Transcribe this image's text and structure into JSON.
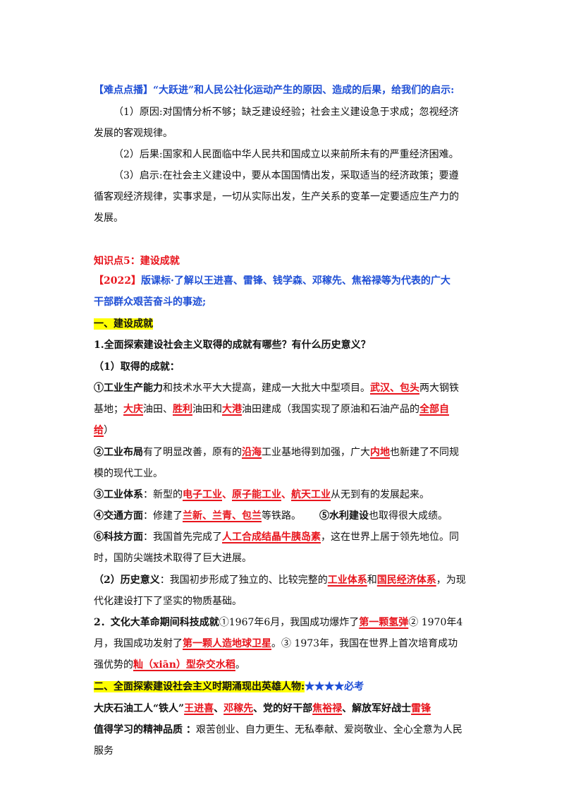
{
  "difficulty": {
    "title": "【难点点播】“大跃进”和人民公社化运动产生的原因、造成的后果，给我们的启示:",
    "cause_1": "（1）原因:对国情分析不够；缺乏建设经验；社会主义建设急于求成；忽视经济",
    "cause_2": "发展的客观规律。",
    "result": "（2）后果:国家和人民面临中华人民共和国成立以来前所未有的严重经济困难。",
    "lesson_1": "（3）启示:在社会主义建设中，要从本国国情出发，采取适当的经济政策；要遵",
    "lesson_2": "循客观经济规律，实事求是，一切从实际出发，生产关系的变革一定要适应生产力的",
    "lesson_3": "发展。"
  },
  "knowledge": {
    "heading": "知识点5：建设成就",
    "standard_tag": "【2022】",
    "standard_1": "版课标·了解以王进喜、雷锋、钱学森、邓稼先、焦裕禄等为代表的广大",
    "standard_2": "干部群众艰苦奋斗的事迹;"
  },
  "section1": {
    "heading": "一、建设成就",
    "question": "1.全面探索建设社会主义取得的成就有哪些？有什么历史意义？",
    "sub1": "（1）取得的成就：",
    "a1": {
      "label": "①工业生产能力",
      "t1": "和技术水平大大提高，建成一大批大中型项目。",
      "k1": "武汉、包头",
      "t2": "两大钢铁",
      "t3": "基地；",
      "k2": "大庆",
      "t4": "油田、",
      "k3": "胜利",
      "t5": "油田和",
      "k4": "大港",
      "t6": "油田建成（我国实现了原油和石油产品的",
      "k5": "全部自",
      "k6": "给",
      "t7": "）"
    },
    "a2": {
      "label": "②工业布局",
      "t1": "有了明显改善，原有的",
      "k1": "沿海",
      "t2": "工业基地得到加强，广大",
      "k2": "内地",
      "t3": "也新建了不同规",
      "t4": "模的现代工业。"
    },
    "a3": {
      "label": "③工业体系",
      "t1": "：新型的",
      "k1": "电子工业",
      "s1": "、",
      "k2": "原子能工业",
      "s2": "、",
      "k3": "航天工业",
      "t2": "从无到有的发展起来。"
    },
    "a4": {
      "label": "④交通方面",
      "t1": "：修建了",
      "k1": "兰新、兰青、包兰",
      "t2": "等铁路。",
      "label2": "⑤水利建设",
      "t3": "也取得很大成绩。"
    },
    "a6": {
      "label": "⑥科技方面",
      "t1": "：我国首先完成了",
      "k1": "人工合成结晶牛胰岛素",
      "t2": "，这在世界上居于领先地位。同",
      "t3": "时，国防尖端技术取得了巨大进展。"
    },
    "sub2": {
      "label": "（2）历史意义",
      "t1": "：我国初步形成了独立的、比较完整的",
      "k1": "工业体系",
      "t2": "和",
      "k2": "国民经济体系",
      "t3": "，为现",
      "t4": "代化建设打下了坚实的物质基础。"
    },
    "q2": {
      "label": "2．文化大革命期间科技成就",
      "t1": "①1967年6月，我国成功爆炸了",
      "k1": "第一颗氢弹",
      "t2": "② 1970年4",
      "t3": "月，我国成功发射了",
      "k2": "第一颗人造地球卫星",
      "t4": "。③ 1973年，我国在世界上首次培育成功",
      "t5": "强优势的",
      "k3": "籼（xiān）型杂交水稻",
      "t6": "。"
    }
  },
  "section2": {
    "heading": "二、全面探索建设社会主义时期涌现出英雄人物:",
    "stars": "★★★★必考",
    "heroes": {
      "t1": "大庆石油工人“铁人”",
      "k1": "王进喜",
      "s1": "、",
      "k2": "邓稼先",
      "t2": "、党的好干部",
      "k3": "焦裕禄",
      "t3": "、解放军好战士",
      "k4": "雷锋"
    },
    "spirit": {
      "label": "值得学习的精神品质 ：",
      "t1": "艰苦创业、自力更生、无私奉献、爱岗敬业、全心全意为人民",
      "t2": "服务"
    }
  }
}
